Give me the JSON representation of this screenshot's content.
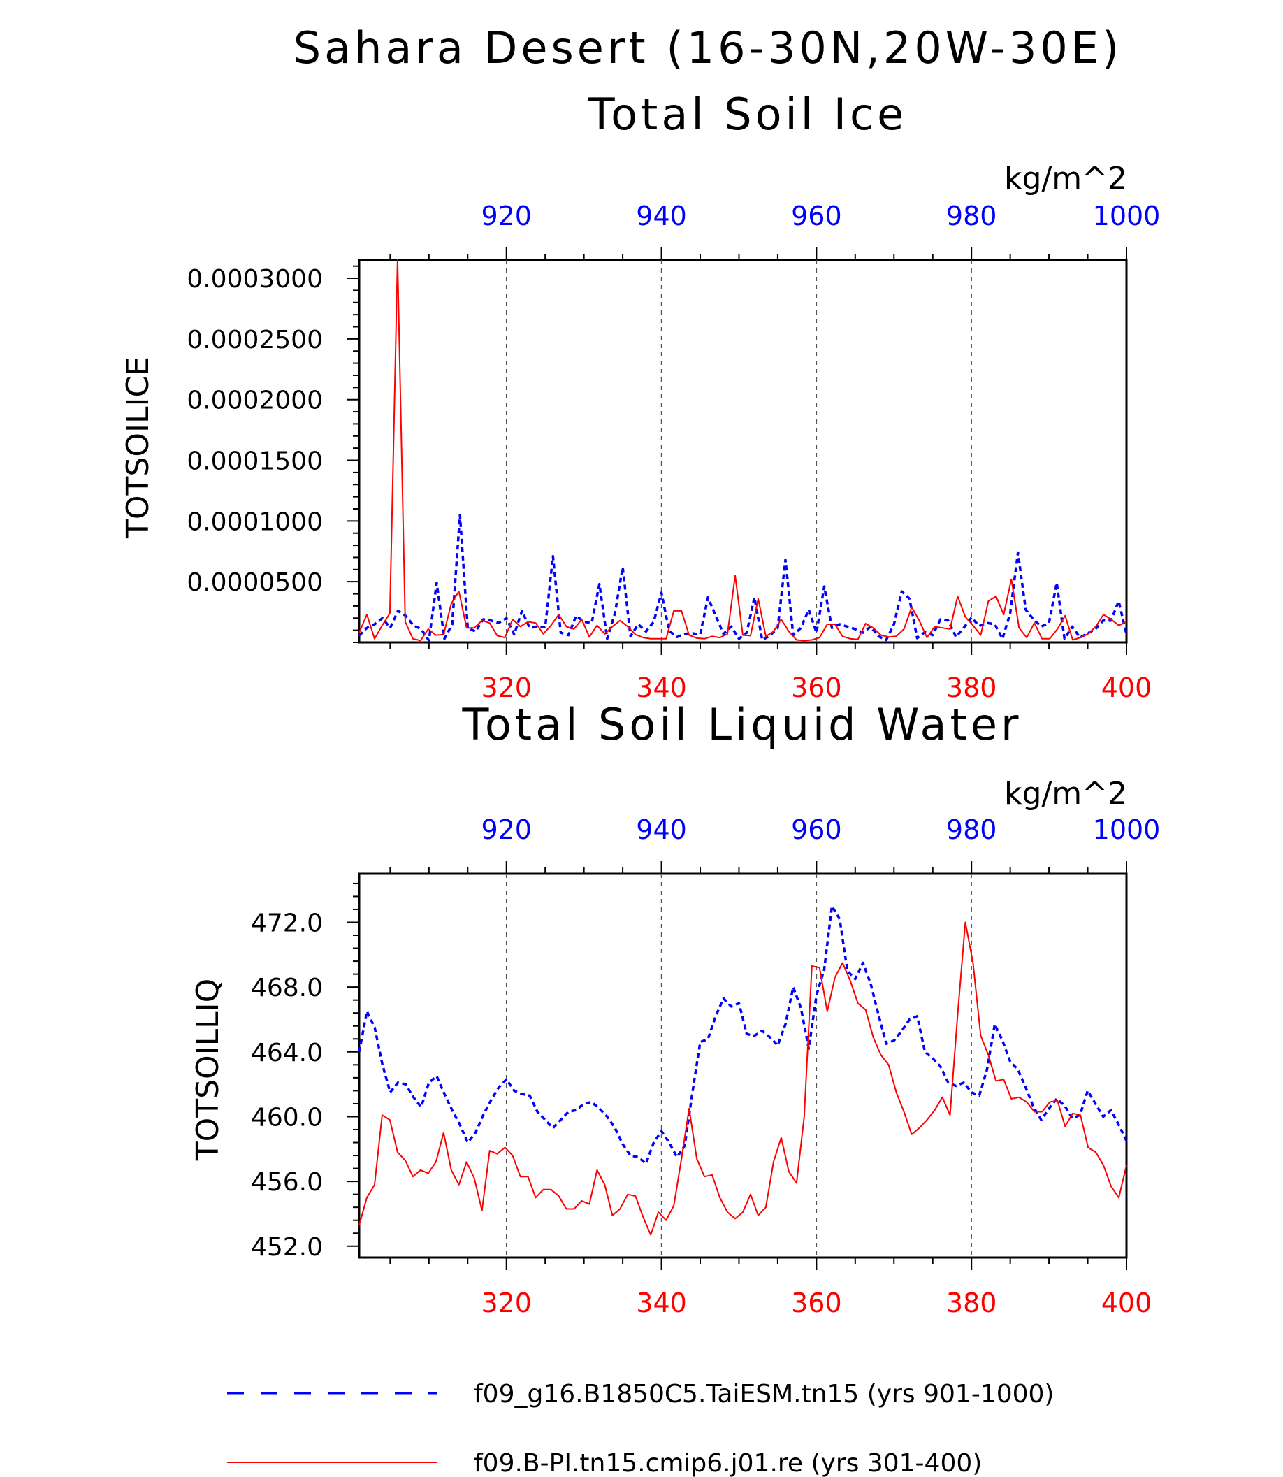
{
  "title": "Sahara Desert (16-30N,20W-30E)",
  "colors": {
    "top_series": "#0000ff",
    "bottom_series": "#ff0000",
    "axis": "#000000",
    "grid": "#555555"
  },
  "chart_data": [
    {
      "type": "line",
      "subtitle": "Total Soil Ice",
      "units": "kg/m^2",
      "ylabel": "TOTSOILICE",
      "ylim": [
        0,
        0.000315
      ],
      "yticks": [
        5e-05,
        0.0001,
        0.00015,
        0.0002,
        0.00025,
        0.0003
      ],
      "ytick_labels": [
        "0.0000500",
        "0.0001000",
        "0.0001500",
        "0.0002000",
        "0.0002500",
        "0.0003000"
      ],
      "x_top": {
        "lim": [
          901,
          1000
        ],
        "ticks": [
          920,
          940,
          960,
          980,
          1000
        ],
        "labels": [
          "920",
          "940",
          "960",
          "980",
          "1000"
        ]
      },
      "x_bottom": {
        "lim": [
          301,
          400
        ],
        "ticks": [
          320,
          340,
          360,
          380,
          400
        ],
        "labels": [
          "320",
          "340",
          "360",
          "380",
          "400"
        ]
      },
      "grid_x": [
        320,
        340,
        360,
        380
      ],
      "series": [
        {
          "name": "f09_g16.B1850C5.TaiESM.tn15 (yrs 901-1000)",
          "axis": "top",
          "style": "dashed",
          "values": [
            5.5e-06,
            1.2e-05,
            1.5e-05,
            2e-05,
            1.2e-05,
            2.6e-05,
            2.2e-05,
            1.4e-05,
            1.1e-05,
            1.5e-06,
            4.9e-05,
            3e-06,
            1.5e-05,
            0.000105,
            1.2e-05,
            9e-06,
            1.9e-05,
            1.8e-05,
            1.6e-05,
            2e-05,
            6.5e-06,
            2.6e-05,
            1.2e-05,
            1.3e-05,
            1.25e-05,
            7.1e-05,
            8e-06,
            6e-06,
            2.2e-05,
            1.7e-05,
            1.6e-05,
            4.8e-05,
            3e-06,
            2.4e-05,
            6.2e-05,
            5e-06,
            1.5e-05,
            9e-06,
            1.7e-05,
            4.1e-05,
            9.5e-06,
            4.5e-06,
            7e-06,
            7.5e-06,
            6.5e-06,
            3.7e-05,
            2.2e-05,
            7e-06,
            1.3e-05,
            3e-06,
            8e-06,
            3.7e-05,
            2e-06,
            5.5e-06,
            1.2e-05,
            6.8e-05,
            6e-06,
            1.2e-05,
            2.7e-05,
            8e-06,
            4.6e-05,
            1.2e-05,
            1.5e-05,
            1.3e-05,
            1.1e-05,
            8e-06,
            1.3e-05,
            5e-06,
            2e-06,
            1.5e-05,
            4.2e-05,
            3.6e-05,
            3.5e-06,
            8.5e-06,
            6e-06,
            1.9e-05,
            1.8e-05,
            4.5e-06,
            1.2e-05,
            2.05e-05,
            1.35e-05,
            1.6e-05,
            1.5e-05,
            3e-06,
            2.4e-05,
            7.4e-05,
            2.7e-05,
            1.9e-05,
            1.3e-05,
            1.6e-05,
            4.9e-05,
            3e-06,
            1.3e-05,
            4e-06,
            7.5e-06,
            1.1e-05,
            1.8e-05,
            1.8e-05,
            3.4e-05,
            6.5e-06
          ]
        },
        {
          "name": "f09.B-PI.tn15.cmip6.j01.re (yrs 301-400)",
          "axis": "bottom",
          "style": "solid",
          "values": [
            8e-06,
            2.3e-05,
            3e-06,
            1.4e-05,
            2.4e-05,
            0.000315,
            1.7e-05,
            3e-06,
            1.5e-06,
            1.1e-05,
            6e-06,
            6.5e-06,
            3.2e-05,
            4.2e-05,
            1.2e-05,
            1.2e-05,
            1.8e-05,
            1.6e-05,
            5.5e-06,
            4e-06,
            1.9e-05,
            1.3e-05,
            1.7e-05,
            1.6e-05,
            7e-06,
            1.4e-05,
            2.3e-05,
            1.3e-05,
            1.1e-05,
            1.9e-05,
            4.5e-06,
            1.4e-05,
            7e-06,
            1.3e-05,
            1.8e-05,
            1.3e-05,
            6.5e-06,
            4e-06,
            3e-06,
            3e-06,
            3e-06,
            2.6e-05,
            2.6e-05,
            6e-06,
            3.5e-06,
            3e-06,
            5e-06,
            4e-06,
            7e-06,
            5.5e-05,
            6e-06,
            5.5e-06,
            3.6e-05,
            5e-06,
            9e-06,
            1.9e-05,
            9e-06,
            2e-06,
            1.5e-06,
            2e-06,
            4e-06,
            1.5e-05,
            1.5e-05,
            5e-06,
            3e-06,
            2.5e-06,
            1.55e-05,
            1.2e-05,
            6e-06,
            4.5e-06,
            5e-06,
            1.1e-05,
            2.9e-05,
            1.8e-05,
            4e-06,
            1.3e-05,
            1.2e-05,
            1.1e-05,
            3.8e-05,
            2.1e-05,
            1.4e-05,
            6e-06,
            3.4e-05,
            3.8e-05,
            2.3e-05,
            5.2e-05,
            1.2e-05,
            4e-06,
            1.6e-05,
            3e-06,
            3e-06,
            1.1e-05,
            2.2e-05,
            2e-06,
            4e-06,
            7e-06,
            1.3e-05,
            2.3e-05,
            1.9e-05,
            1.4e-05,
            1.7e-05
          ]
        }
      ]
    },
    {
      "type": "line",
      "subtitle": "Total Soil Liquid Water",
      "units": "kg/m^2",
      "ylabel": "TOTSOILLIQ",
      "ylim": [
        451.3,
        475.0
      ],
      "yticks": [
        452,
        456,
        460,
        464,
        468,
        472
      ],
      "ytick_labels": [
        "452.0",
        "456.0",
        "460.0",
        "464.0",
        "468.0",
        "472.0"
      ],
      "x_top": {
        "lim": [
          901,
          1000
        ],
        "ticks": [
          920,
          940,
          960,
          980,
          1000
        ],
        "labels": [
          "920",
          "940",
          "960",
          "980",
          "1000"
        ]
      },
      "x_bottom": {
        "lim": [
          301,
          400
        ],
        "ticks": [
          320,
          340,
          360,
          380,
          400
        ],
        "labels": [
          "320",
          "340",
          "360",
          "380",
          "400"
        ]
      },
      "grid_x": [
        320,
        340,
        360,
        380
      ],
      "series": [
        {
          "name": "f09_g16.B1850C5.TaiESM.tn15 (yrs 901-1000)",
          "axis": "top",
          "style": "dashed",
          "values": [
            464.0,
            466.5,
            465.5,
            463.2,
            461.5,
            462.1,
            462.0,
            461.2,
            460.6,
            462.1,
            462.5,
            461.4,
            460.4,
            459.5,
            458.4,
            459.0,
            460.1,
            461.0,
            461.8,
            462.3,
            461.6,
            461.4,
            461.3,
            460.3,
            459.8,
            459.3,
            459.8,
            460.3,
            460.4,
            460.8,
            460.9,
            460.5,
            460.0,
            459.3,
            458.3,
            457.6,
            457.5,
            457.1,
            458.4,
            459.1,
            458.4,
            457.5,
            458.2,
            461.5,
            464.6,
            464.8,
            466.2,
            467.3,
            466.8,
            467.0,
            465.1,
            465.0,
            465.3,
            464.9,
            464.4,
            465.7,
            468.0,
            466.7,
            464.2,
            467.5,
            469.1,
            473.0,
            472.2,
            469.0,
            468.5,
            469.5,
            468.2,
            466.3,
            464.5,
            464.7,
            465.3,
            466.0,
            466.2,
            464.0,
            463.6,
            463.1,
            462.1,
            461.9,
            462.1,
            461.5,
            461.3,
            462.9,
            465.7,
            464.7,
            463.4,
            462.9,
            461.8,
            460.6,
            459.8,
            460.5,
            461.1,
            460.7,
            459.9,
            460.1,
            461.6,
            460.8,
            460.0,
            460.4,
            459.5,
            458.5
          ]
        },
        {
          "name": "f09.B-PI.tn15.cmip6.j01.re (yrs 301-400)",
          "axis": "bottom",
          "style": "solid",
          "values": [
            453.3,
            455.0,
            455.8,
            460.1,
            459.8,
            457.8,
            457.3,
            456.3,
            456.7,
            456.5,
            457.2,
            459.0,
            456.7,
            455.8,
            457.2,
            456.2,
            454.2,
            457.9,
            457.7,
            458.1,
            457.6,
            456.3,
            456.3,
            455.0,
            455.5,
            455.5,
            455.1,
            454.3,
            454.3,
            454.8,
            454.6,
            456.7,
            455.8,
            453.9,
            454.3,
            455.2,
            455.1,
            453.8,
            452.7,
            454.1,
            453.6,
            454.5,
            457.4,
            460.5,
            457.4,
            456.3,
            456.4,
            455.0,
            454.1,
            453.7,
            454.1,
            455.2,
            453.9,
            454.4,
            457.2,
            458.7,
            456.6,
            455.9,
            460.0,
            469.3,
            469.2,
            466.5,
            468.6,
            469.5,
            468.4,
            467.0,
            466.6,
            464.9,
            463.8,
            463.2,
            461.5,
            460.3,
            458.9,
            459.3,
            459.8,
            460.4,
            461.2,
            460.1,
            466.3,
            472.0,
            469.5,
            465.0,
            463.8,
            462.2,
            462.3,
            461.1,
            461.2,
            460.9,
            460.3,
            460.3,
            460.9,
            461.0,
            459.4,
            460.2,
            460.1,
            458.1,
            457.8,
            457.0,
            455.7,
            455.0,
            457.0
          ]
        }
      ]
    }
  ],
  "legend": [
    {
      "label": "f09_g16.B1850C5.TaiESM.tn15 (yrs 901-1000)",
      "style": "dashed",
      "color": "#0000ff"
    },
    {
      "label": "f09.B-PI.tn15.cmip6.j01.re (yrs 301-400)",
      "style": "solid",
      "color": "#ff0000"
    }
  ]
}
